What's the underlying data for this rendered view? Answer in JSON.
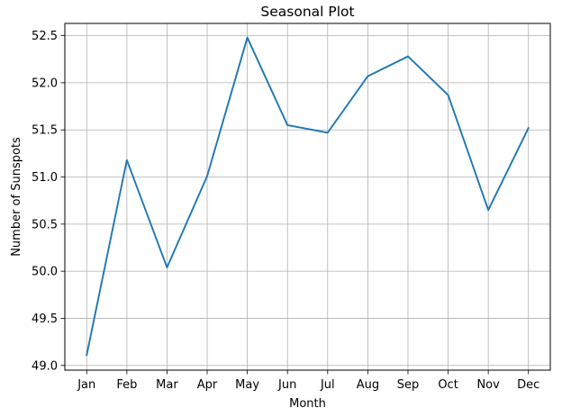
{
  "chart_data": {
    "type": "line",
    "title": "Seasonal Plot",
    "xlabel": "Month",
    "ylabel": "Number of Sunspots",
    "categories": [
      "Jan",
      "Feb",
      "Mar",
      "Apr",
      "May",
      "Jun",
      "Jul",
      "Aug",
      "Sep",
      "Oct",
      "Nov",
      "Dec"
    ],
    "series": [
      {
        "values": [
          49.11,
          51.18,
          50.04,
          51.01,
          52.48,
          51.55,
          51.47,
          52.07,
          52.28,
          51.87,
          50.65,
          51.52
        ]
      }
    ],
    "ylim": [
      48.95,
      52.63
    ],
    "yticks": [
      49.0,
      49.5,
      50.0,
      50.5,
      51.0,
      51.5,
      52.0,
      52.5
    ],
    "ytick_labels": [
      "49.0",
      "49.5",
      "50.0",
      "50.5",
      "51.0",
      "51.5",
      "52.0",
      "52.5"
    ],
    "grid": true,
    "legend": false,
    "colors": {
      "line": "#1f77b4",
      "grid": "#b0b0b0",
      "axes": "#000000"
    }
  }
}
